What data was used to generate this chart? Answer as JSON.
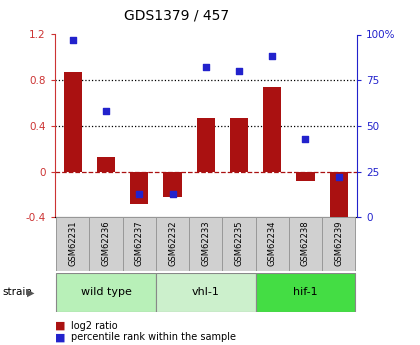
{
  "title": "GDS1379 / 457",
  "samples": [
    "GSM62231",
    "GSM62236",
    "GSM62237",
    "GSM62232",
    "GSM62233",
    "GSM62235",
    "GSM62234",
    "GSM62238",
    "GSM62239"
  ],
  "log2_ratio": [
    0.87,
    0.13,
    -0.28,
    -0.22,
    0.47,
    0.47,
    0.74,
    -0.08,
    -0.52
  ],
  "percentile_rank": [
    97,
    58,
    13,
    13,
    82,
    80,
    88,
    43,
    22
  ],
  "groups": [
    {
      "label": "wild type",
      "indices": [
        0,
        1,
        2
      ],
      "color": "#b8f0b8"
    },
    {
      "label": "vhl-1",
      "indices": [
        3,
        4,
        5
      ],
      "color": "#ccf0cc"
    },
    {
      "label": "hif-1",
      "indices": [
        6,
        7,
        8
      ],
      "color": "#44dd44"
    }
  ],
  "bar_color": "#aa1111",
  "dot_color": "#2222cc",
  "left_tick_color": "#cc3333",
  "right_tick_color": "#2222cc",
  "ylim_left": [
    -0.4,
    1.2
  ],
  "ylim_right": [
    0,
    100
  ],
  "yticks_left": [
    -0.4,
    0.0,
    0.4,
    0.8,
    1.2
  ],
  "ytick_labels_left": [
    "-0.4",
    "0",
    "0.4",
    "0.8",
    "1.2"
  ],
  "yticks_right": [
    0,
    25,
    50,
    75,
    100
  ],
  "ytick_labels_right": [
    "0",
    "25",
    "50",
    "75",
    "100%"
  ],
  "hline_y": 0.0,
  "dotted_lines": [
    0.4,
    0.8
  ],
  "background_color": "#ffffff",
  "plot_bg_color": "#ffffff",
  "sample_box_color": "#d0d0d0",
  "sample_box_edge": "#999999",
  "legend_items": [
    "log2 ratio",
    "percentile rank within the sample"
  ],
  "fig_width": 4.2,
  "fig_height": 3.45,
  "dpi": 100
}
